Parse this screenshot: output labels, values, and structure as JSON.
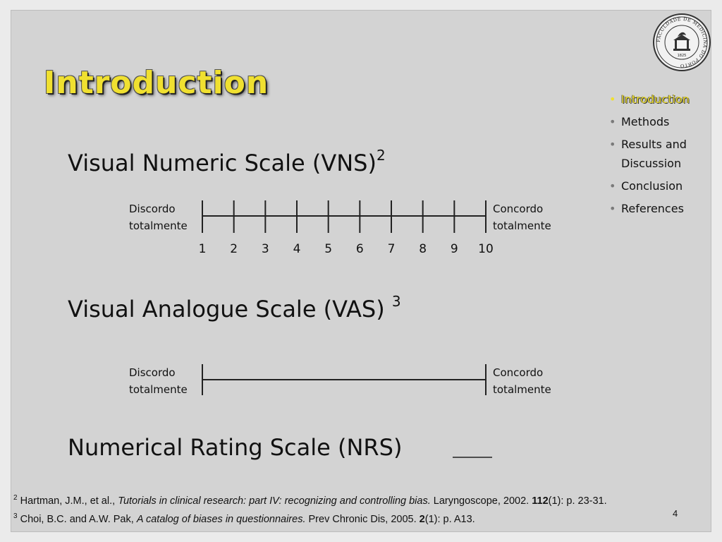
{
  "slide": {
    "title": "Introduction",
    "page_number": "4"
  },
  "nav": {
    "items": [
      {
        "label": "Introduction",
        "active": true
      },
      {
        "label": "Methods",
        "active": false
      },
      {
        "label": "Results and Discussion",
        "active": false
      },
      {
        "label": "Conclusion",
        "active": false
      },
      {
        "label": "References",
        "active": false
      }
    ]
  },
  "vns": {
    "heading": "Visual Numeric Scale (VNS)",
    "sup": "2",
    "left_label_1": "Discordo",
    "left_label_2": "totalmente",
    "right_label_1": "Concordo",
    "right_label_2": "totalmente",
    "ticks": [
      "1",
      "2",
      "3",
      "4",
      "5",
      "6",
      "7",
      "8",
      "9",
      "10"
    ]
  },
  "vas": {
    "heading": "Visual Analogue Scale (VAS)",
    "sup": "3",
    "left_label_1": "Discordo",
    "left_label_2": "totalmente",
    "right_label_1": "Concordo",
    "right_label_2": "totalmente"
  },
  "nrs": {
    "heading": "Numerical Rating Scale (NRS)"
  },
  "references": {
    "ref2": {
      "num": "2",
      "authors": " Hartman, J.M., et al., ",
      "title": "Tutorials in clinical research: part IV: recognizing and controlling bias.",
      "journal": " Laryngoscope, 2002. ",
      "volume": "112",
      "pages": "(1): p. 23-31."
    },
    "ref3": {
      "num": "3",
      "authors": " Choi, B.C. and A.W. Pak, ",
      "title": "A catalog of biases in questionnaires.",
      "journal": " Prev Chronic Dis, 2005. ",
      "volume": "2",
      "pages": "(1): p. A13."
    }
  },
  "logo": {
    "icon": "university-seal-icon",
    "ring_text": "FACULDADE DE MEDICINA DO PORTO",
    "year": "1825"
  }
}
